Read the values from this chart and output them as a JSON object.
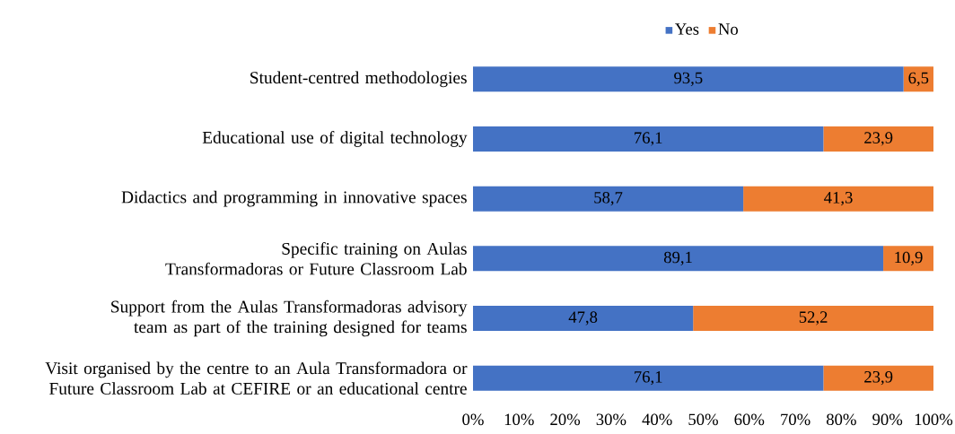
{
  "chart_data": {
    "type": "bar",
    "orientation": "horizontal",
    "stacked": true,
    "legend": "top",
    "categories": [
      "Student-centred methodologies",
      "Educational use of digital technology",
      "Didactics and programming in innovative spaces",
      "Specific training on Aulas Transformadoras or Future Classroom Lab",
      "Support from the Aulas Transformadoras advisory team as part of the training designed for teams",
      "Visit organised by the centre to an Aula Transformadora or Future Classroom Lab at CEFIRE or an educational centre"
    ],
    "series": [
      {
        "name": "Yes",
        "color": "#4472c4",
        "values": [
          93.5,
          76.1,
          58.7,
          89.1,
          47.8,
          76.1
        ],
        "value_labels": [
          "93,5",
          "76,1",
          "58,7",
          "89,1",
          "47,8",
          "76,1"
        ]
      },
      {
        "name": "No",
        "color": "#ed7d31",
        "values": [
          6.5,
          23.9,
          41.3,
          10.9,
          52.2,
          23.9
        ],
        "value_labels": [
          "6,5",
          "23,9",
          "41,3",
          "10,9",
          "52,2",
          "23,9"
        ]
      }
    ],
    "xlim": [
      0,
      100
    ],
    "xticks": [
      {
        "value": 0,
        "label": "0%"
      },
      {
        "value": 10,
        "label": "10%"
      },
      {
        "value": 20,
        "label": "20%"
      },
      {
        "value": 30,
        "label": "30%"
      },
      {
        "value": 40,
        "label": "40%"
      },
      {
        "value": 50,
        "label": "50%"
      },
      {
        "value": 60,
        "label": "60%"
      },
      {
        "value": 70,
        "label": "70%"
      },
      {
        "value": 80,
        "label": "80%"
      },
      {
        "value": 90,
        "label": "90%"
      },
      {
        "value": 100,
        "label": "100%"
      }
    ]
  }
}
